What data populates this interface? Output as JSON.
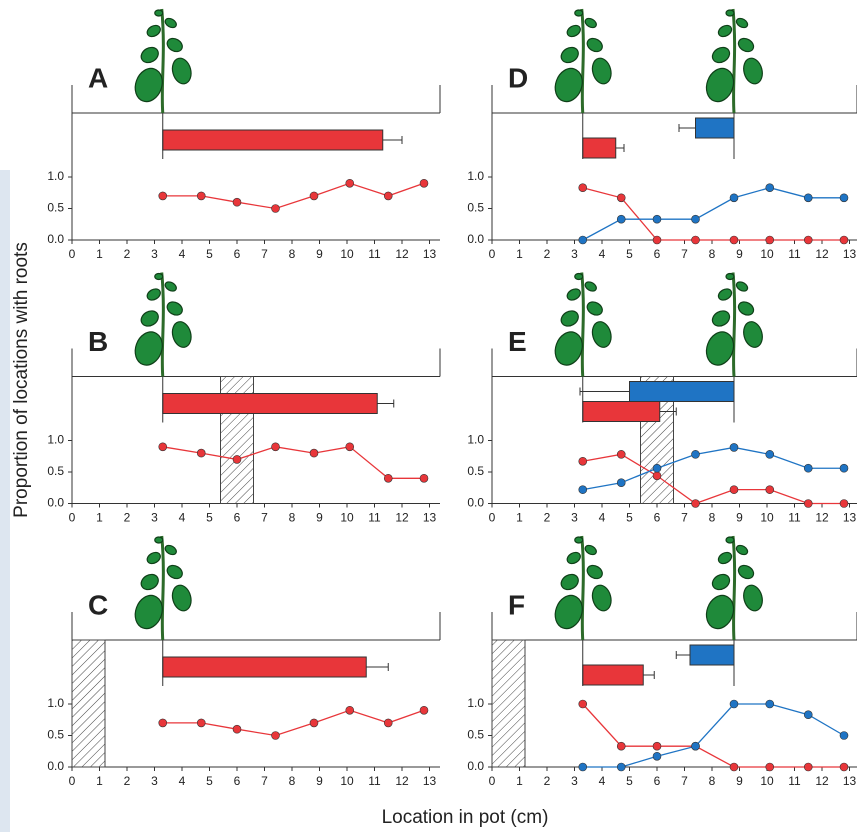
{
  "chart_data": {
    "type": "line",
    "ylabel": "Proportion of locations with roots",
    "xlabel": "Location in pot (cm)",
    "xlim": [
      0,
      13
    ],
    "xticks": [
      0,
      1,
      2,
      3,
      4,
      5,
      6,
      7,
      8,
      9,
      10,
      11,
      12,
      13
    ],
    "ylim": [
      0,
      1
    ],
    "yticks": [
      {
        "value": 0,
        "label": "0.0"
      },
      {
        "value": 0.5,
        "label": "0.5"
      },
      {
        "value": 1,
        "label": "1.0"
      }
    ],
    "panels": [
      {
        "label": "A",
        "x": [
          3.3,
          4.7,
          6.0,
          7.4,
          8.8,
          10.1,
          11.5,
          12.8
        ],
        "series": [
          {
            "color": "#e8363a",
            "values": [
              0.7,
              0.7,
              0.6,
              0.5,
              0.7,
              0.9,
              0.7,
              0.9
            ],
            "bar": {
              "start": 3.3,
              "end": 11.3,
              "error": 0.7
            }
          }
        ]
      },
      {
        "label": "B",
        "x": [
          3.3,
          4.7,
          6.0,
          7.4,
          8.8,
          10.1,
          11.5,
          12.8
        ],
        "barrier": [
          5.4,
          6.6
        ],
        "series": [
          {
            "color": "#e8363a",
            "values": [
              0.9,
              0.8,
              0.7,
              0.9,
              0.8,
              0.9,
              0.4,
              0.4
            ],
            "bar": {
              "start": 3.3,
              "end": 11.1,
              "error": 0.6
            }
          }
        ]
      },
      {
        "label": "C",
        "x": [
          3.3,
          4.7,
          6.0,
          7.4,
          8.8,
          10.1,
          11.5,
          12.8
        ],
        "barrier": [
          0,
          1.2
        ],
        "series": [
          {
            "color": "#e8363a",
            "values": [
              0.7,
              0.7,
              0.6,
              0.5,
              0.7,
              0.9,
              0.7,
              0.9
            ],
            "bar": {
              "start": 3.3,
              "end": 10.7,
              "error": 0.8
            }
          }
        ]
      },
      {
        "label": "D",
        "x": [
          3.3,
          4.7,
          6.0,
          7.4,
          8.8,
          10.1,
          11.5,
          12.8
        ],
        "series": [
          {
            "color": "#e8363a",
            "values": [
              0.83,
              0.67,
              0,
              0,
              0,
              0,
              0,
              0
            ],
            "bar": {
              "start": 3.3,
              "end": 4.5,
              "error": 0.3
            }
          },
          {
            "color": "#1f74c4",
            "values": [
              0,
              0.33,
              0.33,
              0.33,
              0.67,
              0.83,
              0.67,
              0.67
            ],
            "bar": {
              "start": 8.8,
              "end": 7.4,
              "error": 0.6
            }
          }
        ]
      },
      {
        "label": "E",
        "x": [
          3.3,
          4.7,
          6.0,
          7.4,
          8.8,
          10.1,
          11.5,
          12.8
        ],
        "barrier": [
          5.4,
          6.6
        ],
        "series": [
          {
            "color": "#e8363a",
            "values": [
              0.67,
              0.78,
              0.44,
              0,
              0.22,
              0.22,
              0,
              0
            ],
            "bar": {
              "start": 3.3,
              "end": 6.1,
              "error": 0.6
            }
          },
          {
            "color": "#1f74c4",
            "values": [
              0.22,
              0.33,
              0.56,
              0.78,
              0.89,
              0.78,
              0.56,
              0.56
            ],
            "bar": {
              "start": 8.8,
              "end": 5.0,
              "error": 1.8
            }
          }
        ]
      },
      {
        "label": "F",
        "x": [
          3.3,
          4.7,
          6.0,
          7.4,
          8.8,
          10.1,
          11.5,
          12.8
        ],
        "barrier": [
          0,
          1.2
        ],
        "series": [
          {
            "color": "#e8363a",
            "values": [
              1,
              0.33,
              0.33,
              0.33,
              0,
              0,
              0,
              0
            ],
            "bar": {
              "start": 3.3,
              "end": 5.5,
              "error": 0.4
            }
          },
          {
            "color": "#1f74c4",
            "values": [
              0,
              0,
              0.17,
              0.33,
              1,
              1,
              0.83,
              0.5
            ],
            "bar": {
              "start": 8.8,
              "end": 7.2,
              "error": 0.5
            }
          }
        ]
      }
    ]
  }
}
